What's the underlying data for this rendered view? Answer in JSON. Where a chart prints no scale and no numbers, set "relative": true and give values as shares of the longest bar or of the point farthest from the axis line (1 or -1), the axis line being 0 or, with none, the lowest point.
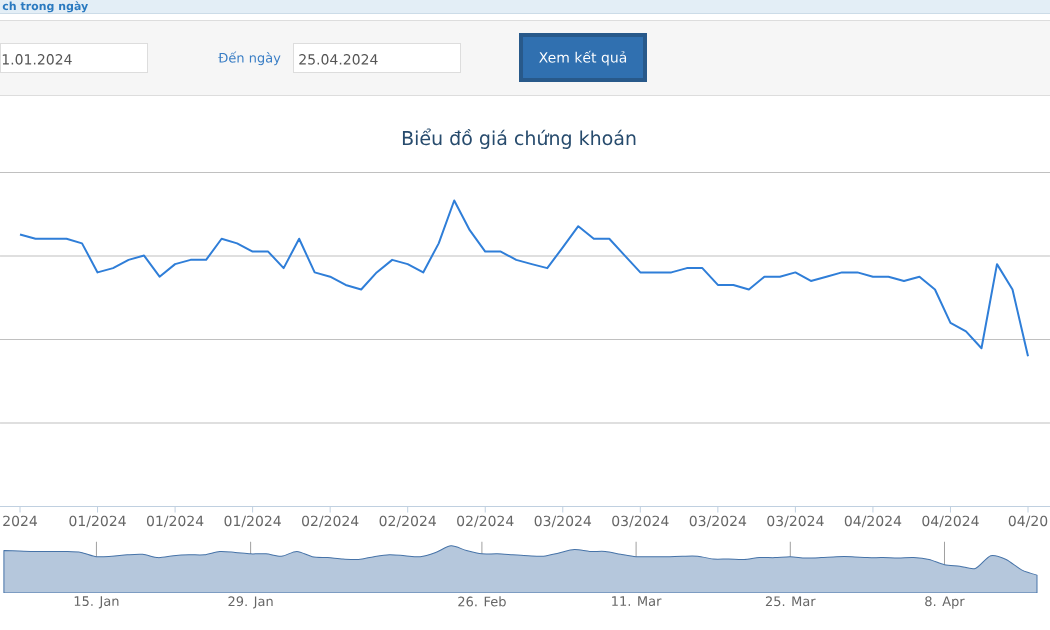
{
  "chart_data": [
    {
      "type": "other",
      "annotations": [
        "ch trong ngày",
        "1.01.2024",
        "Đến ngày",
        "25.04.2024",
        "Xem kết quả"
      ]
    },
    {
      "type": "line",
      "title": "Biểu đồ giá chứng khoán",
      "relative": true,
      "grid": "y",
      "color": "#2f7ed8",
      "categories": [
        "2024",
        null,
        null,
        null,
        null,
        "01/2024",
        null,
        null,
        null,
        null,
        "01/2024",
        null,
        null,
        null,
        null,
        "01/2024",
        null,
        null,
        null,
        null,
        "02/2024",
        null,
        null,
        null,
        null,
        "02/2024",
        null,
        null,
        null,
        null,
        "02/2024",
        null,
        null,
        null,
        null,
        "03/2024",
        null,
        null,
        null,
        null,
        "03/2024",
        null,
        null,
        null,
        null,
        "03/2024",
        null,
        null,
        null,
        null,
        "03/2024",
        null,
        null,
        null,
        null,
        "04/2024",
        null,
        null,
        null,
        null,
        "04/2024",
        null,
        null,
        null,
        null,
        "04/20"
      ],
      "values": [
        0.889,
        0.875,
        0.875,
        0.875,
        0.86,
        0.765,
        0.779,
        0.806,
        0.82,
        0.751,
        0.792,
        0.806,
        0.806,
        0.875,
        0.86,
        0.833,
        0.833,
        0.779,
        0.875,
        0.765,
        0.751,
        0.724,
        0.709,
        0.765,
        0.806,
        0.792,
        0.765,
        0.86,
        1,
        0.903,
        0.833,
        0.833,
        0.806,
        0.792,
        0.779,
        0.847,
        0.916,
        0.875,
        0.875,
        0.82,
        0.765,
        0.765,
        0.765,
        0.779,
        0.779,
        0.724,
        0.724,
        0.709,
        0.751,
        0.751,
        0.765,
        0.737,
        0.751,
        0.765,
        0.765,
        0.751,
        0.751,
        0.737,
        0.751,
        0.709,
        0.6,
        0.572,
        0.517,
        0.792,
        0.709,
        0.491
      ]
    },
    {
      "type": "area",
      "relative": true,
      "grid": "x",
      "color": "#b5c7dc",
      "categories": [
        null,
        null,
        null,
        null,
        null,
        null,
        "15. Jan",
        null,
        null,
        null,
        null,
        null,
        null,
        null,
        null,
        null,
        "29. Jan",
        null,
        null,
        null,
        null,
        null,
        null,
        null,
        null,
        null,
        null,
        null,
        null,
        null,
        null,
        "26. Feb",
        null,
        null,
        null,
        null,
        null,
        null,
        null,
        null,
        null,
        "11. Mar",
        null,
        null,
        null,
        null,
        null,
        null,
        null,
        null,
        null,
        "25. Mar",
        null,
        null,
        null,
        null,
        null,
        null,
        null,
        null,
        null,
        "8. Apr",
        null,
        null,
        null,
        null,
        null,
        null
      ],
      "values": [
        0.9,
        0.89,
        0.88,
        0.88,
        0.88,
        0.86,
        0.77,
        0.78,
        0.81,
        0.82,
        0.75,
        0.79,
        0.81,
        0.81,
        0.88,
        0.86,
        0.83,
        0.83,
        0.78,
        0.88,
        0.77,
        0.75,
        0.72,
        0.71,
        0.77,
        0.81,
        0.79,
        0.77,
        0.86,
        1,
        0.9,
        0.83,
        0.83,
        0.81,
        0.79,
        0.78,
        0.85,
        0.92,
        0.88,
        0.88,
        0.82,
        0.77,
        0.77,
        0.77,
        0.78,
        0.78,
        0.72,
        0.72,
        0.71,
        0.75,
        0.75,
        0.77,
        0.74,
        0.75,
        0.77,
        0.77,
        0.75,
        0.75,
        0.74,
        0.75,
        0.71,
        0.6,
        0.57,
        0.52,
        0.79,
        0.71,
        0.49,
        0.38
      ]
    }
  ]
}
